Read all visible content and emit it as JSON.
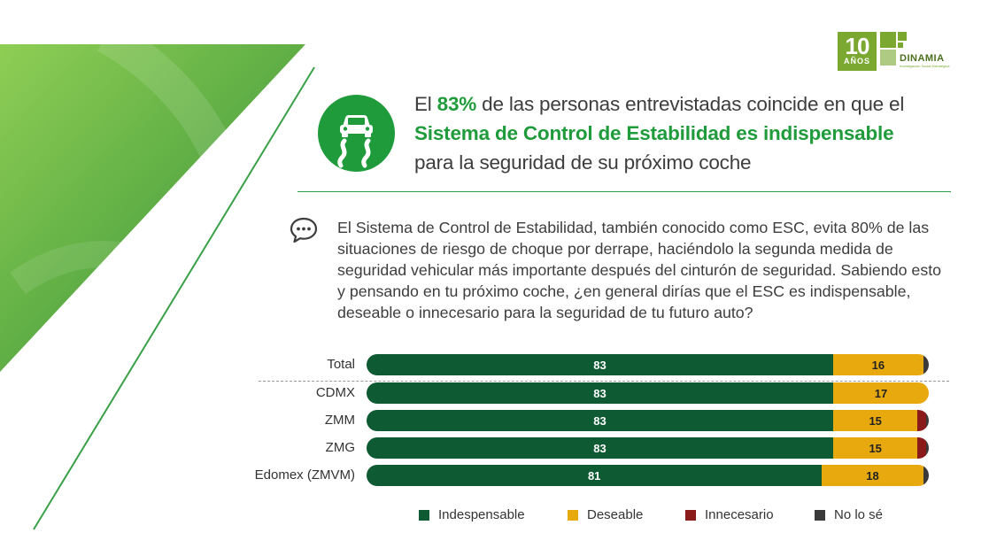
{
  "logo": {
    "years_number": "10",
    "years_word": "AÑOS",
    "brand": "DINAMIA",
    "tagline": "Investigación Social Estratégica"
  },
  "headline": {
    "part1": "El ",
    "pct": "83%",
    "part2": " de las personas entrevistadas coincide en que el",
    "emphasis": "Sistema de Control de Estabilidad es indispensable",
    "part3": "para la seguridad de su próximo coche"
  },
  "question": "El Sistema de Control de Estabilidad, también conocido como ESC, evita 80% de las situaciones de riesgo de choque por derrape, haciéndolo la segunda medida de seguridad vehicular más importante después del cinturón de seguridad. Sabiendo esto y pensando en tu próximo coche, ¿en general dirías que el ESC es indispensable, deseable o innecesario para la seguridad de tu futuro auto?",
  "icons": {
    "headline_icon": "skidding-car-icon",
    "question_icon": "chat-bubble-icon"
  },
  "colors": {
    "indispensable": "#0e5a33",
    "deseable": "#e8a90f",
    "innecesario": "#8b1a1a",
    "no_lo_se": "#3a3a3a",
    "accent": "#1f9b3b"
  },
  "chart_data": {
    "type": "bar",
    "orientation": "horizontal",
    "stacked": true,
    "categories": [
      "Total",
      "CDMX",
      "ZMM",
      "ZMG",
      "Edomex (ZMVM)"
    ],
    "series": [
      {
        "name": "Indespensable",
        "values": [
          83,
          83,
          83,
          83,
          81
        ],
        "color": "#0e5a33"
      },
      {
        "name": "Deseable",
        "values": [
          16,
          17,
          15,
          15,
          18
        ],
        "color": "#e8a90f"
      },
      {
        "name": "Innecesario",
        "values": [
          0,
          0,
          1.5,
          1.5,
          0
        ],
        "color": "#8b1a1a"
      },
      {
        "name": "No lo sé",
        "values": [
          1,
          0,
          0.5,
          0.5,
          1
        ],
        "color": "#3a3a3a"
      }
    ],
    "xlim": [
      0,
      100
    ],
    "legend_position": "bottom",
    "labeled_series": [
      "Indespensable",
      "Deseable"
    ]
  }
}
